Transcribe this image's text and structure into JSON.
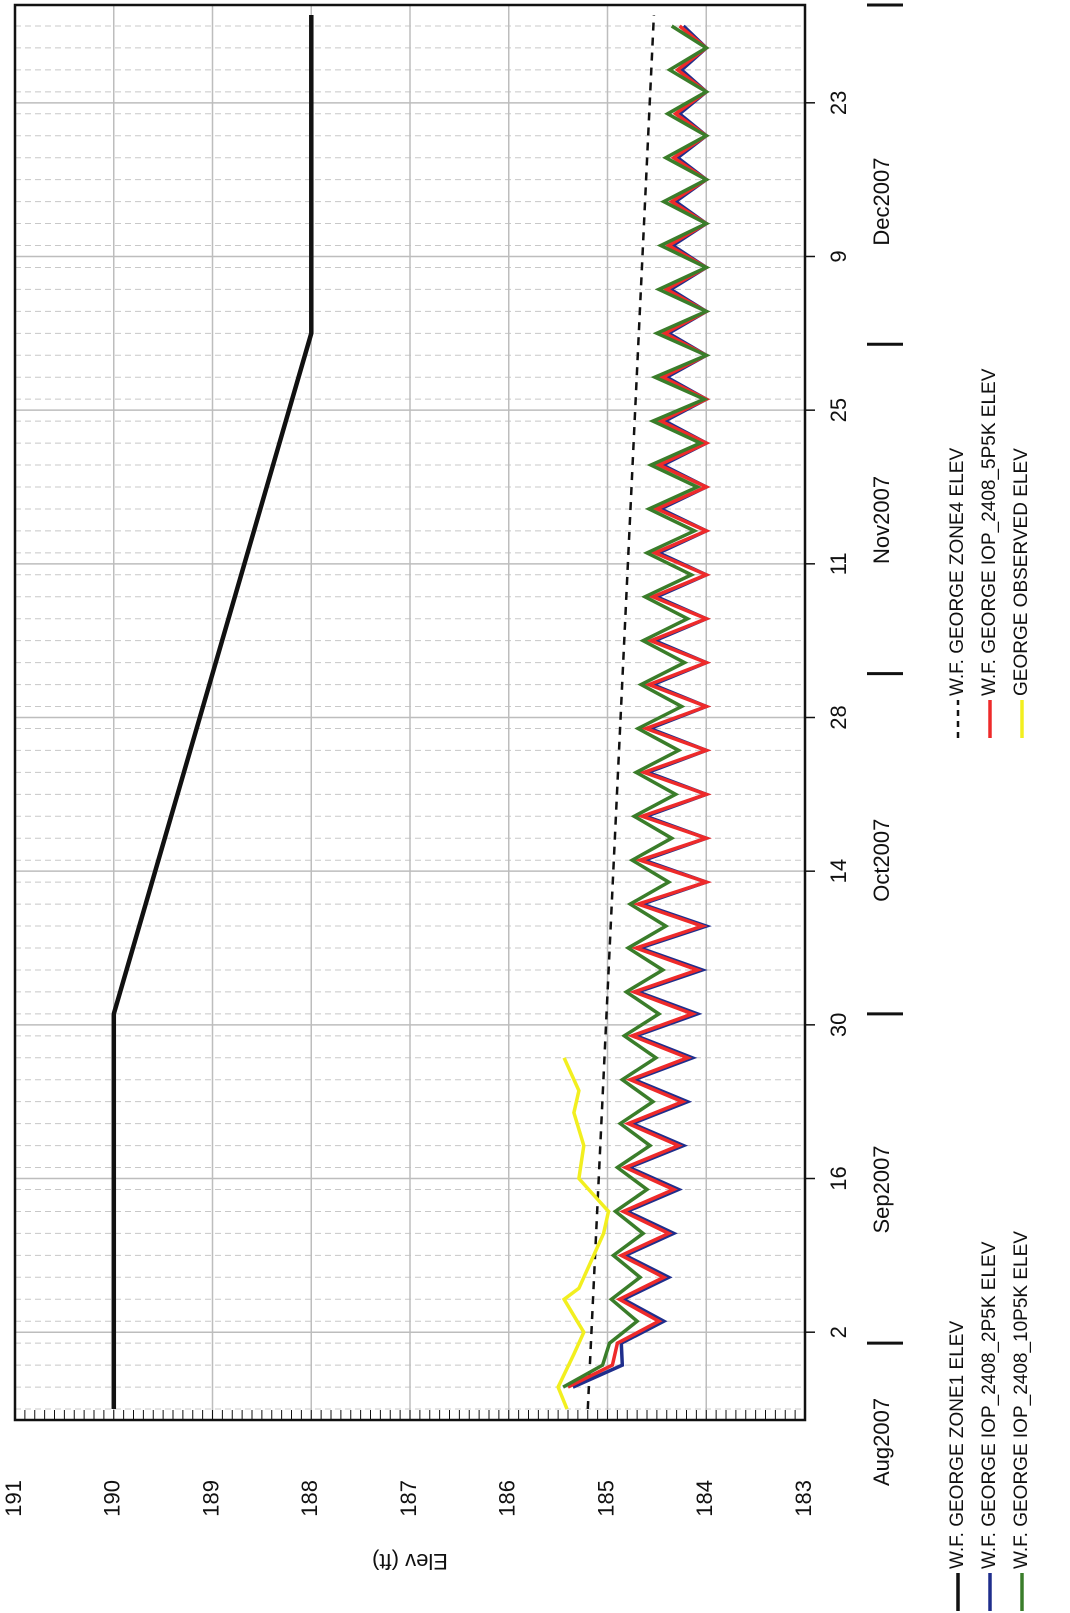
{
  "chart_data": {
    "type": "line",
    "ylabel": "Elev (ft)",
    "ylim": [
      183,
      191
    ],
    "yticks": [
      183,
      184,
      185,
      186,
      187,
      188,
      189,
      190,
      191
    ],
    "xlim": [
      "2007-08-25",
      "2007-12-31"
    ],
    "xticks": [
      {
        "value": "2007-09-02",
        "label": "2"
      },
      {
        "value": "2007-09-16",
        "label": "16"
      },
      {
        "value": "2007-09-30",
        "label": "30"
      },
      {
        "value": "2007-10-14",
        "label": "14"
      },
      {
        "value": "2007-10-28",
        "label": "28"
      },
      {
        "value": "2007-11-11",
        "label": "11"
      },
      {
        "value": "2007-11-25",
        "label": "25"
      },
      {
        "value": "2007-12-09",
        "label": "9"
      },
      {
        "value": "2007-12-23",
        "label": "23"
      }
    ],
    "month_labels": [
      {
        "value": "2007-08-23",
        "label": "Aug2007"
      },
      {
        "value": "2007-09-15",
        "label": "Sep2007"
      },
      {
        "value": "2007-10-15",
        "label": "Oct2007"
      },
      {
        "value": "2007-11-15",
        "label": "Nov2007"
      },
      {
        "value": "2007-12-14",
        "label": "Dec2007"
      }
    ],
    "month_ticks": [
      "2007-09-01",
      "2007-10-01",
      "2007-11-01",
      "2007-12-01"
    ],
    "grid": true,
    "legend": "bottom",
    "x": [
      "2007-08-28",
      "2007-08-30",
      "2007-09-01",
      "2007-09-03",
      "2007-09-05",
      "2007-09-07",
      "2007-09-09",
      "2007-09-11",
      "2007-09-13",
      "2007-09-15",
      "2007-09-17",
      "2007-09-19",
      "2007-09-21",
      "2007-09-23",
      "2007-09-25",
      "2007-09-27",
      "2007-09-29",
      "2007-10-01",
      "2007-10-03",
      "2007-10-05",
      "2007-10-07",
      "2007-10-09",
      "2007-10-11",
      "2007-10-13",
      "2007-10-15",
      "2007-10-17",
      "2007-10-19",
      "2007-10-21",
      "2007-10-23",
      "2007-10-25",
      "2007-10-27",
      "2007-10-29",
      "2007-10-31",
      "2007-11-02",
      "2007-11-04",
      "2007-11-06",
      "2007-11-08",
      "2007-11-10",
      "2007-11-12",
      "2007-11-14",
      "2007-11-16",
      "2007-11-18",
      "2007-11-20",
      "2007-11-22",
      "2007-11-24",
      "2007-11-26",
      "2007-11-28",
      "2007-11-30",
      "2007-12-02",
      "2007-12-04",
      "2007-12-06",
      "2007-12-08",
      "2007-12-10",
      "2007-12-12",
      "2007-12-14",
      "2007-12-16",
      "2007-12-18",
      "2007-12-20",
      "2007-12-22",
      "2007-12-24",
      "2007-12-26",
      "2007-12-28",
      "2007-12-30"
    ],
    "series": [
      {
        "name": "W.F. GEORGE ZONE1 ELEV",
        "color": "#111111",
        "dash": false,
        "x": [
          "2007-08-26",
          "2007-10-01",
          "2007-12-02",
          "2007-12-31"
        ],
        "values": [
          190,
          190,
          188,
          188
        ]
      },
      {
        "name": "W.F. GEORGE ZONE4 ELEV",
        "color": "#111111",
        "dash": true,
        "x": [
          "2007-08-26",
          "2007-12-31"
        ],
        "values": [
          185.2,
          184.53
        ]
      },
      {
        "name": "W.F. GEORGE IOP_2408_2P5K ELEV",
        "color": "#1f2e8c",
        "dash": false,
        "values": [
          185.35,
          184.85,
          184.86,
          184.43,
          184.84,
          184.38,
          184.82,
          184.33,
          184.8,
          184.28,
          184.78,
          184.23,
          184.75,
          184.19,
          184.73,
          184.14,
          184.71,
          184.09,
          184.69,
          184.04,
          184.67,
          184.0,
          184.65,
          184.0,
          184.63,
          184.0,
          184.61,
          184.0,
          184.59,
          184.0,
          184.57,
          184.0,
          184.54,
          184.0,
          184.52,
          184.0,
          184.5,
          184.0,
          184.48,
          184.0,
          184.46,
          184.0,
          184.44,
          184.0,
          184.42,
          184.0,
          184.4,
          184.0,
          184.38,
          184.0,
          184.36,
          184.0,
          184.34,
          184.0,
          184.31,
          184.0,
          184.29,
          184.0,
          184.27,
          184.0,
          184.25,
          184.0,
          184.23
        ]
      },
      {
        "name": "W.F. GEORGE IOP_2408_5P5K ELEV",
        "color": "#ee2a2a",
        "dash": false,
        "values": [
          185.4,
          184.95,
          184.9,
          184.48,
          184.88,
          184.43,
          184.86,
          184.38,
          184.84,
          184.33,
          184.82,
          184.28,
          184.79,
          184.24,
          184.77,
          184.19,
          184.75,
          184.14,
          184.73,
          184.09,
          184.71,
          184.04,
          184.69,
          184.0,
          184.67,
          184.0,
          184.65,
          184.0,
          184.63,
          184.0,
          184.61,
          184.0,
          184.58,
          184.0,
          184.56,
          184.0,
          184.54,
          184.0,
          184.52,
          184.0,
          184.5,
          184.0,
          184.48,
          184.0,
          184.46,
          184.0,
          184.44,
          184.0,
          184.42,
          184.0,
          184.4,
          184.0,
          184.38,
          184.0,
          184.35,
          184.0,
          184.33,
          184.0,
          184.31,
          184.0,
          184.29,
          184.0,
          184.27
        ]
      },
      {
        "name": "W.F. GEORGE IOP_2408_10P5K ELEV",
        "color": "#3a7d2a",
        "dash": false,
        "values": [
          185.45,
          185.05,
          184.98,
          184.7,
          184.96,
          184.67,
          184.94,
          184.64,
          184.92,
          184.6,
          184.9,
          184.57,
          184.87,
          184.54,
          184.85,
          184.51,
          184.83,
          184.48,
          184.81,
          184.44,
          184.79,
          184.41,
          184.77,
          184.38,
          184.75,
          184.35,
          184.73,
          184.31,
          184.71,
          184.28,
          184.69,
          184.25,
          184.66,
          184.22,
          184.64,
          184.19,
          184.62,
          184.15,
          184.6,
          184.12,
          184.58,
          184.09,
          184.56,
          184.06,
          184.54,
          184.02,
          184.52,
          184.0,
          184.5,
          184.0,
          184.48,
          184.0,
          184.46,
          184.0,
          184.43,
          184.0,
          184.41,
          184.0,
          184.39,
          184.0,
          184.37,
          184.0,
          184.35
        ]
      },
      {
        "name": "GEORGE OBSERVED ELEV",
        "color": "#f2ef1f",
        "dash": false,
        "x": [
          "2007-08-26",
          "2007-08-28",
          "2007-08-31",
          "2007-09-02",
          "2007-09-05",
          "2007-09-06",
          "2007-09-09",
          "2007-09-11",
          "2007-09-13",
          "2007-09-15",
          "2007-09-16",
          "2007-09-19",
          "2007-09-22",
          "2007-09-24",
          "2007-09-27"
        ],
        "values": [
          185.41,
          185.5,
          185.34,
          185.24,
          185.44,
          185.29,
          185.14,
          185.04,
          184.99,
          185.19,
          185.29,
          185.24,
          185.34,
          185.29,
          185.44
        ]
      }
    ]
  }
}
